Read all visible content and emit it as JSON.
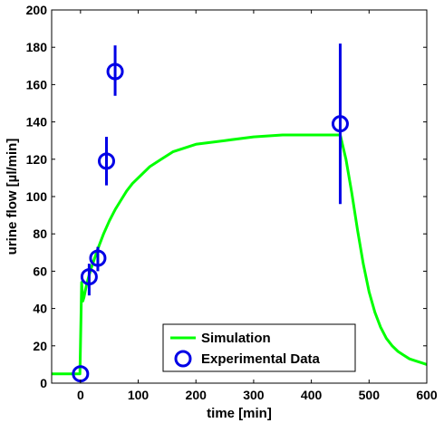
{
  "chart_data": {
    "type": "line",
    "xlabel": "time [min]",
    "ylabel": "urine flow [µl/min]",
    "xlim": [
      -50,
      600
    ],
    "ylim": [
      0,
      200
    ],
    "xticks": [
      0,
      100,
      200,
      300,
      400,
      500,
      600
    ],
    "yticks": [
      0,
      20,
      40,
      60,
      80,
      100,
      120,
      140,
      160,
      180,
      200
    ],
    "grid": false,
    "legend_position": "bottom-center",
    "series": [
      {
        "name": "Simulation",
        "kind": "line",
        "color": "#00ff00",
        "x": [
          -50,
          -1,
          0,
          2,
          4,
          6,
          8,
          10,
          15,
          20,
          30,
          40,
          50,
          60,
          70,
          80,
          90,
          100,
          120,
          140,
          160,
          180,
          200,
          250,
          300,
          350,
          400,
          450,
          460,
          470,
          480,
          490,
          500,
          510,
          520,
          530,
          540,
          550,
          560,
          570,
          580,
          590,
          600
        ],
        "y": [
          5,
          5,
          20,
          54,
          44,
          46,
          49,
          52,
          58,
          63,
          72,
          80,
          87,
          93,
          98,
          103,
          107,
          110,
          116,
          120,
          124,
          126,
          128,
          130,
          132,
          133,
          133,
          133,
          120,
          102,
          82,
          64,
          49,
          38,
          30,
          24,
          20,
          17,
          15,
          13,
          12,
          11,
          10
        ]
      },
      {
        "name": "Experimental Data",
        "kind": "scatter",
        "marker": "circle",
        "color": "#0000e6",
        "x": [
          0,
          15,
          30,
          45,
          60,
          450
        ],
        "y": [
          5,
          57,
          67,
          119,
          167,
          139
        ],
        "yerr_low": [
          5,
          47,
          60,
          106,
          154,
          96
        ],
        "yerr_high": [
          5,
          64,
          73,
          132,
          181,
          182
        ]
      }
    ]
  }
}
